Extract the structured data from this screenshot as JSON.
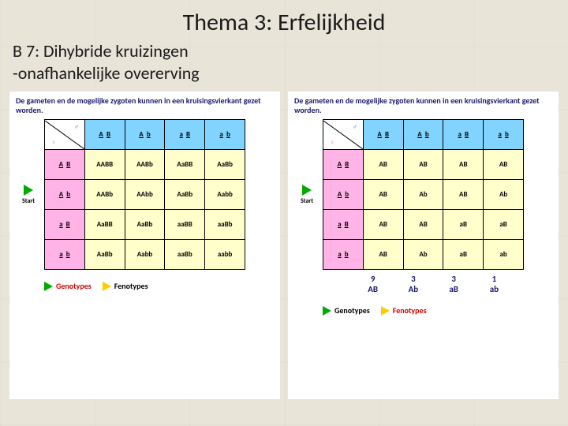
{
  "title": "Thema 3: Erfelijkheid",
  "subtitle_line1": "B 7: Dihybride kruizingen",
  "subtitle_line2": "-onafhankelijke overerving",
  "panel_caption": "De gameten en de mogelijke zygoten kunnen in een kruisingsvierkant gezet worden.",
  "start_label": "Start",
  "colors": {
    "female_header": "#ffb3e6",
    "male_header": "#80d4ff",
    "cell_bg": "#ffffcc",
    "triangle_green": "#00aa00",
    "triangle_yellow": "#ffcc00",
    "text_red": "#d40000",
    "caption_blue": "#1a1a6e"
  },
  "left": {
    "male_gametes": [
      [
        "A",
        "B"
      ],
      [
        "A",
        "b"
      ],
      [
        "a",
        "B"
      ],
      [
        "a",
        "b"
      ]
    ],
    "female_gametes": [
      [
        "A",
        "B"
      ],
      [
        "A",
        "b"
      ],
      [
        "a",
        "B"
      ],
      [
        "a",
        "b"
      ]
    ],
    "cells": [
      [
        "AABB",
        "AABb",
        "AaBB",
        "AaBb"
      ],
      [
        "AABb",
        "AAbb",
        "AaBb",
        "Aabb"
      ],
      [
        "AaBB",
        "AaBb",
        "aaBB",
        "aaBb"
      ],
      [
        "AaBb",
        "Aabb",
        "aaBb",
        "aabb"
      ]
    ],
    "legend": [
      {
        "tri": "green",
        "label": "Genotypes",
        "red": true
      },
      {
        "tri": "yellow",
        "label": "Fenotypes",
        "red": false
      }
    ]
  },
  "right": {
    "male_gametes": [
      [
        "A",
        "B"
      ],
      [
        "A",
        "b"
      ],
      [
        "a",
        "B"
      ],
      [
        "a",
        "b"
      ]
    ],
    "female_gametes": [
      [
        "A",
        "B"
      ],
      [
        "A",
        "b"
      ],
      [
        "a",
        "B"
      ],
      [
        "a",
        "b"
      ]
    ],
    "cells": [
      [
        "AB",
        "AB",
        "AB",
        "AB"
      ],
      [
        "AB",
        "Ab",
        "AB",
        "Ab"
      ],
      [
        "AB",
        "AB",
        "aB",
        "aB"
      ],
      [
        "AB",
        "Ab",
        "aB",
        "ab"
      ]
    ],
    "ratio": [
      {
        "n": "9",
        "g": "AB"
      },
      {
        "n": "3",
        "g": "Ab"
      },
      {
        "n": "3",
        "g": "aB"
      },
      {
        "n": "1",
        "g": "ab"
      }
    ],
    "legend": [
      {
        "tri": "green",
        "label": "Genotypes",
        "red": false
      },
      {
        "tri": "yellow",
        "label": "Fenotypes",
        "red": true
      }
    ]
  }
}
